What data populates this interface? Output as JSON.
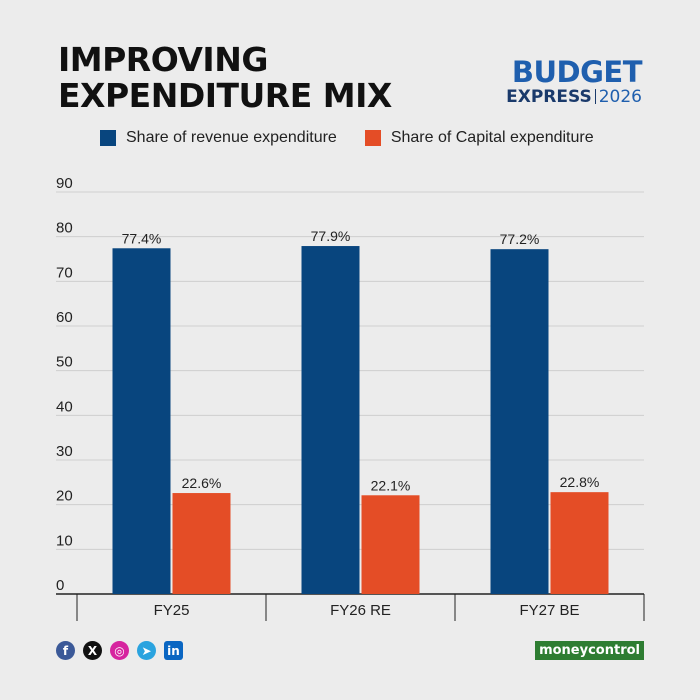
{
  "title": {
    "line1": "IMPROVING",
    "line2": "EXPENDITURE MIX"
  },
  "brand": {
    "top": "BUDGET",
    "bottom_word": "EXPRESS",
    "year": "2026"
  },
  "footer": {
    "icons": [
      "facebook-icon",
      "x-icon",
      "instagram-icon",
      "telegram-icon",
      "linkedin-icon"
    ],
    "publisher": "moneycontrol"
  },
  "colors": {
    "revenue": "#08457e",
    "capital": "#e44d26"
  },
  "chart_data": {
    "type": "bar",
    "categories": [
      "FY25",
      "FY26 RE",
      "FY27 BE"
    ],
    "series": [
      {
        "name": "Share of revenue expenditure",
        "values": [
          77.4,
          77.9,
          77.2
        ],
        "labels": [
          "77.4%",
          "77.9%",
          "77.2%"
        ]
      },
      {
        "name": "Share of Capital expenditure",
        "values": [
          22.6,
          22.1,
          22.8
        ],
        "labels": [
          "22.6%",
          "22.1%",
          "22.8%"
        ]
      }
    ],
    "yticks": [
      "0",
      "10",
      "20",
      "30",
      "40",
      "50",
      "60",
      "70",
      "80",
      "90"
    ],
    "ylim": [
      0,
      90
    ],
    "grid": true,
    "legend": "top"
  }
}
